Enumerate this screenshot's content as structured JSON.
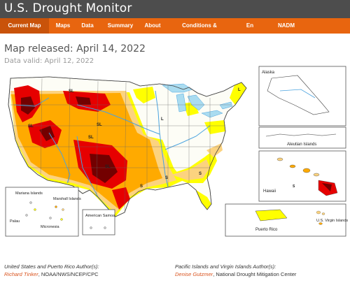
{
  "header": {
    "title": "U.S. Drought Monitor"
  },
  "nav": {
    "items": [
      "Current Map",
      "Maps",
      "Data",
      "Summary",
      "About",
      "Conditions & Outlooks",
      "En Español",
      "NADM"
    ],
    "active_index": 0
  },
  "page": {
    "released": "Map released: April 14, 2022",
    "valid": "Data valid: April 12, 2022"
  },
  "map": {
    "region_labels": {
      "alaska": "Alaska",
      "aleutian": "Aleutian Islands",
      "hawaii": "Hawaii",
      "mariana": "Mariana Islands",
      "marshall": "Marshall Islands",
      "palau": "Palau",
      "micronesia": "Micronesia",
      "samoa": "American Samoa",
      "puerto_rico": "Puerto Rico",
      "virgin": "U.S. Virgin Islands"
    },
    "colors": {
      "d0": "#ffff00",
      "d1": "#fcd37f",
      "d2": "#ffaa00",
      "d3": "#e60000",
      "d4": "#730000",
      "water": "#aadcf0",
      "rivers": "#4aa3df"
    }
  },
  "credits": {
    "left_title": "United States and Puerto Rico Author(s):",
    "left_name": "Richard Tinker",
    "left_org": ", NOAA/NWS/NCEP/CPC",
    "right_title": "Pacific Islands and Virgin Islands Author(s):",
    "right_name": "Denise Gutzmer",
    "right_org": ", National Drought Mitigation Center"
  }
}
